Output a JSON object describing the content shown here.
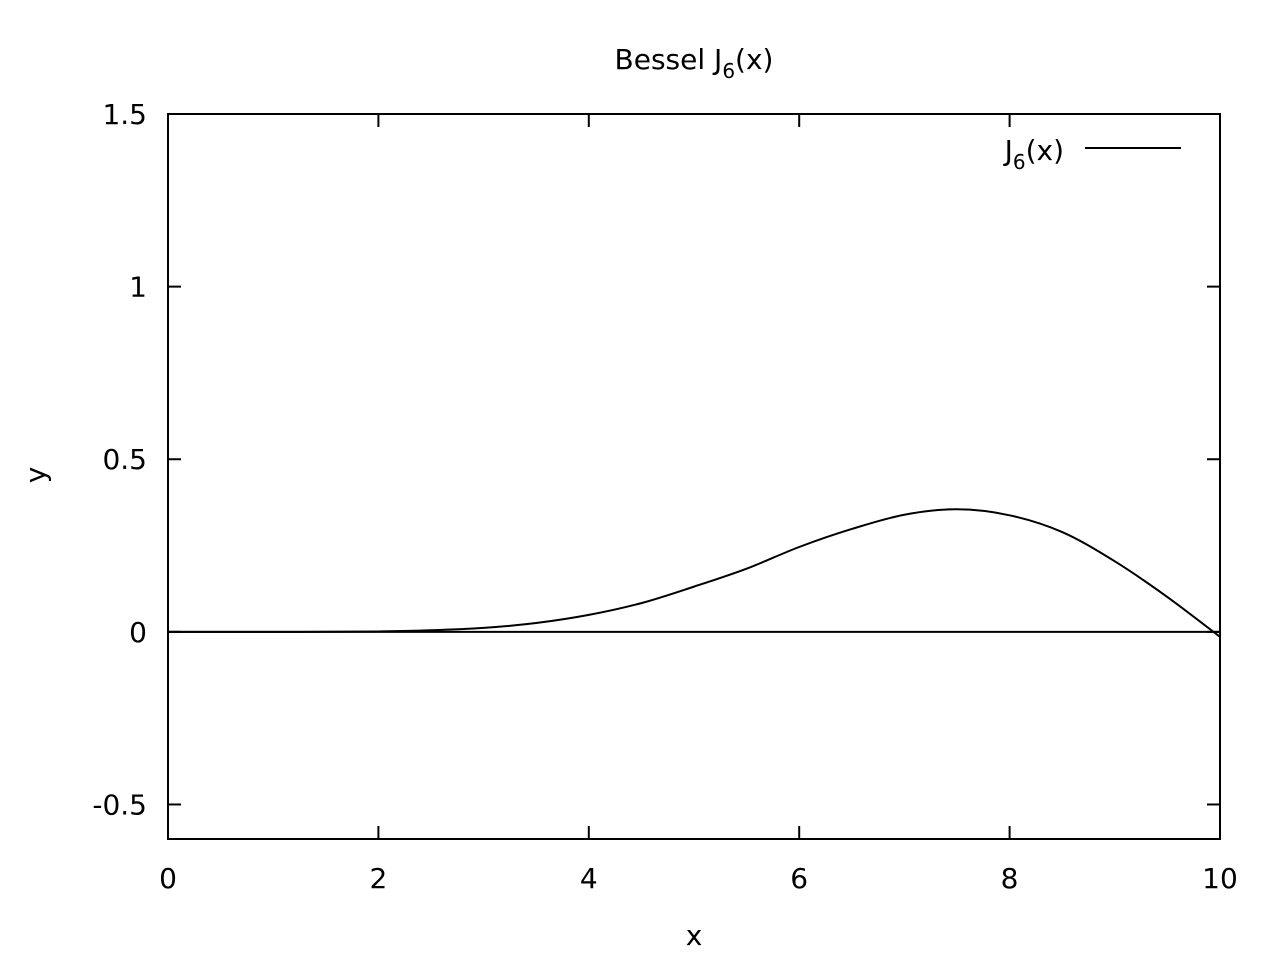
{
  "chart_data": {
    "type": "line",
    "title_main": "Bessel J",
    "title_sub": "6",
    "title_tail": "(x)",
    "xlabel": "x",
    "ylabel": "y",
    "xlim": [
      0,
      10
    ],
    "ylim": [
      -0.6,
      1.5
    ],
    "xticks": [
      0,
      2,
      4,
      6,
      8,
      10
    ],
    "xtick_labels": [
      "0",
      "2",
      "4",
      "6",
      "8",
      "10"
    ],
    "yticks": [
      -0.5,
      0,
      0.5,
      1,
      1.5
    ],
    "ytick_labels": [
      "-0.5",
      "0",
      "0.5",
      "1",
      "1.5"
    ],
    "grid": false,
    "legend_position": "top-right",
    "zero_line": true,
    "series": [
      {
        "legend_main": "J",
        "legend_sub": "6",
        "legend_tail": "(x)",
        "color": "#000000",
        "x": [
          0,
          0.5,
          1,
          1.5,
          2,
          2.5,
          3,
          3.5,
          4,
          4.5,
          5,
          5.5,
          6,
          6.5,
          7,
          7.5,
          8,
          8.5,
          9,
          9.5,
          10
        ],
        "y": [
          0,
          3e-07,
          2e-05,
          0.0002,
          0.0012,
          0.0045,
          0.0114,
          0.0256,
          0.0491,
          0.0833,
          0.131,
          0.183,
          0.2458,
          0.298,
          0.3392,
          0.355,
          0.3376,
          0.289,
          0.2043,
          0.1009,
          -0.0145
        ]
      }
    ]
  }
}
